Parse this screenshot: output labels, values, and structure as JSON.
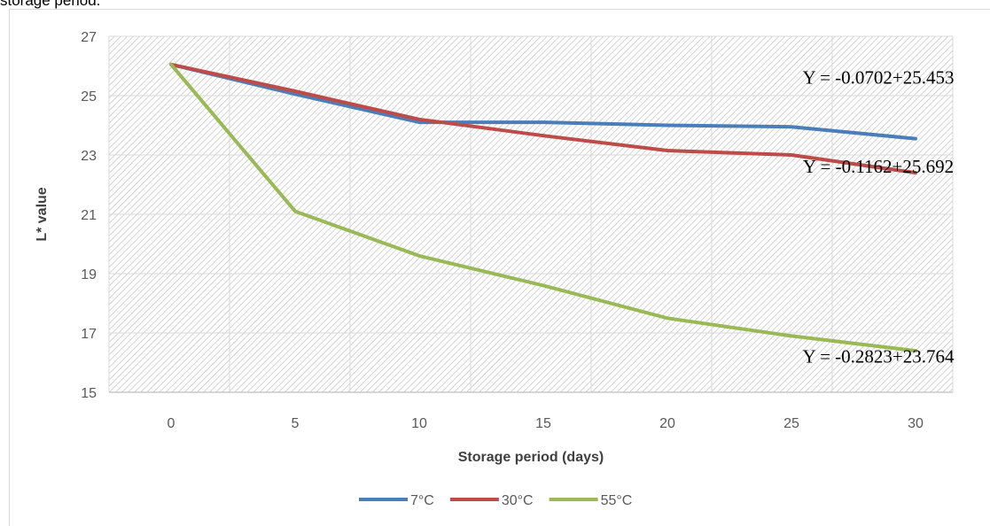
{
  "caption_fragment": "storage period.",
  "chart_data": {
    "type": "line",
    "xlabel": "Storage period (days)",
    "ylabel": "L* value",
    "x": [
      0,
      5,
      10,
      15,
      20,
      25,
      30
    ],
    "ylim": [
      15,
      27
    ],
    "yticks": [
      15,
      17,
      19,
      21,
      23,
      25,
      27
    ],
    "grid": true,
    "legend_position": "bottom",
    "series": [
      {
        "name": "7°C",
        "color": "#4a7ebb",
        "values": [
          26.05,
          25.05,
          24.1,
          24.1,
          24.0,
          23.95,
          23.55
        ]
      },
      {
        "name": "30°C",
        "color": "#be4b48",
        "values": [
          26.05,
          25.15,
          24.2,
          23.65,
          23.15,
          23.0,
          22.4
        ]
      },
      {
        "name": "55°C",
        "color": "#98b954",
        "values": [
          26.05,
          21.1,
          19.6,
          18.6,
          17.5,
          16.9,
          16.4
        ]
      }
    ],
    "annotations": [
      {
        "text": "Y = -0.0702+25.453",
        "x": 28.5,
        "y": 25.4
      },
      {
        "text": "Y = -0.1162+25.692",
        "x": 28.5,
        "y": 22.4
      },
      {
        "text": "Y = -0.2823+23.764",
        "x": 28.5,
        "y": 16.0
      }
    ]
  }
}
